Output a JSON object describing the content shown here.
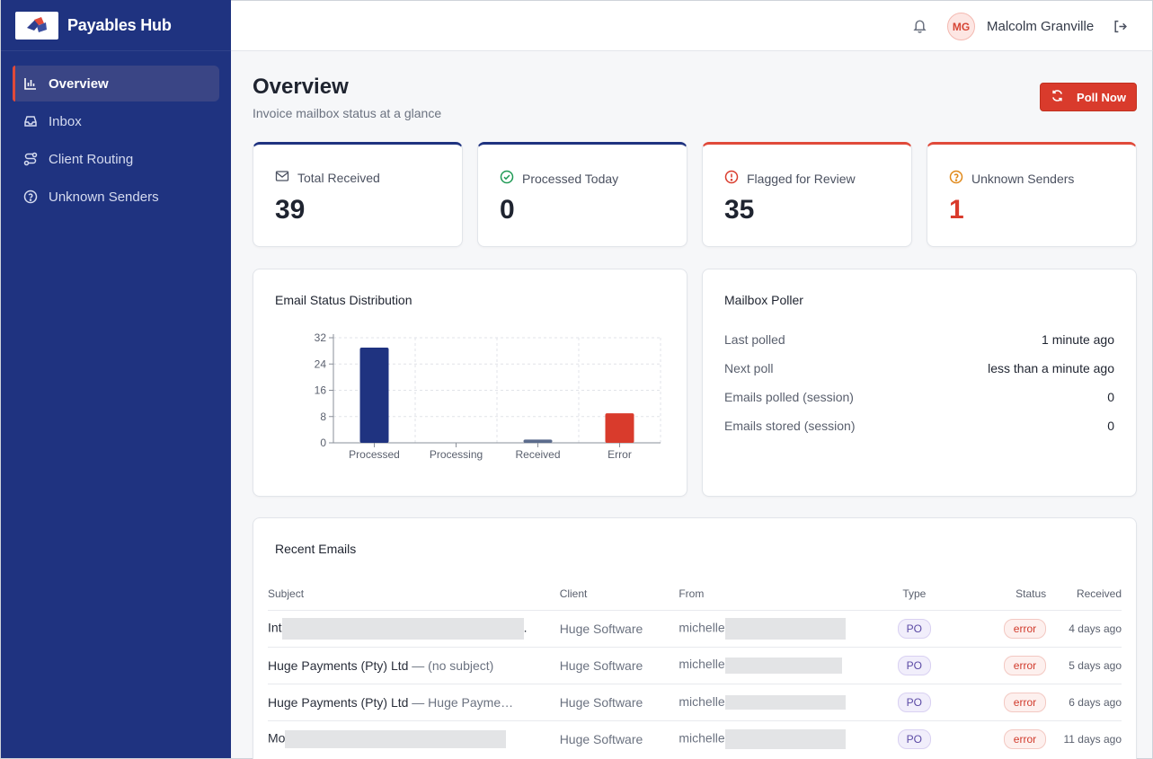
{
  "app": {
    "name": "Payables Hub"
  },
  "sidebar": {
    "items": [
      {
        "label": "Overview",
        "icon": "bar-chart-icon",
        "active": true
      },
      {
        "label": "Inbox",
        "icon": "inbox-icon"
      },
      {
        "label": "Client Routing",
        "icon": "route-icon"
      },
      {
        "label": "Unknown Senders",
        "icon": "help-circle-icon"
      }
    ]
  },
  "header": {
    "user_initials": "MG",
    "user_name": "Malcolm Granville"
  },
  "page": {
    "title": "Overview",
    "subtitle": "Invoice mailbox status at a glance",
    "poll_button": "Poll Now"
  },
  "stats": [
    {
      "label": "Total Received",
      "value": "39",
      "icon": "mail-icon",
      "accent": "#1f3380"
    },
    {
      "label": "Processed Today",
      "value": "0",
      "icon": "check-circle-icon",
      "accent": "#1f3380"
    },
    {
      "label": "Flagged for Review",
      "value": "35",
      "icon": "alert-circle-icon",
      "accent": "#e04a3a"
    },
    {
      "label": "Unknown Senders",
      "value": "1",
      "icon": "help-circle-icon",
      "accent": "#e04a3a"
    }
  ],
  "distribution": {
    "title": "Email Status Distribution",
    "chart_data": {
      "type": "bar",
      "categories": [
        "Processed",
        "Processing",
        "Received",
        "Error"
      ],
      "values": [
        29,
        0,
        1,
        9
      ],
      "colors": [
        "#1f3380",
        "#1f3380",
        "#5b6b8c",
        "#d93b2c"
      ],
      "ylim": [
        0,
        32
      ],
      "yticks": [
        0,
        8,
        16,
        24,
        32
      ],
      "grid": true
    }
  },
  "poller": {
    "title": "Mailbox Poller",
    "rows": [
      {
        "key": "Last polled",
        "value": "1 minute ago"
      },
      {
        "key": "Next poll",
        "value": "less than a minute ago"
      },
      {
        "key": "Emails polled (session)",
        "value": "0"
      },
      {
        "key": "Emails stored (session)",
        "value": "0"
      }
    ]
  },
  "recent": {
    "title": "Recent Emails",
    "columns": [
      "Subject",
      "Client",
      "From",
      "Type",
      "Status",
      "Received"
    ],
    "rows": [
      {
        "subject": "Int",
        "subject_tail": ".",
        "client": "Huge Software",
        "from": "michelle",
        "type": "PO",
        "status": "error",
        "received": "4 days ago"
      },
      {
        "subject": "Huge Payments (Pty) Ltd",
        "subject_tail": "— (no subject)",
        "client": "Huge Software",
        "from": "michelle",
        "type": "PO",
        "status": "error",
        "received": "5 days ago"
      },
      {
        "subject": "Huge Payments (Pty) Ltd",
        "subject_tail": "— Huge Payme…",
        "client": "Huge Software",
        "from": "michelle",
        "type": "PO",
        "status": "error",
        "received": "6 days ago"
      },
      {
        "subject": "Mo",
        "subject_tail": "",
        "client": "Huge Software",
        "from": "michelle",
        "type": "PO",
        "status": "error",
        "received": "11 days ago"
      }
    ]
  }
}
